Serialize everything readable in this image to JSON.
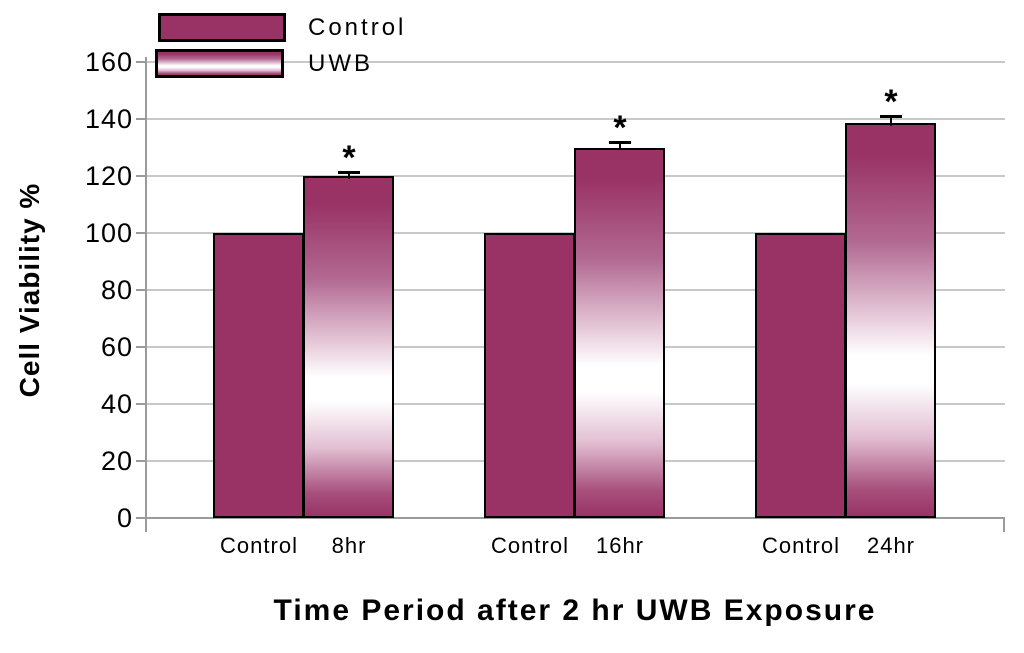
{
  "chart_data": {
    "type": "bar",
    "title": "",
    "xlabel": "Time Period after 2 hr UWB Exposure",
    "ylabel": "Cell Viability %",
    "ylim": [
      0,
      160
    ],
    "yticks": [
      0,
      20,
      40,
      60,
      80,
      100,
      120,
      140,
      160
    ],
    "grid": "horizontal gridlines every 20 units",
    "categories": [
      "8hr",
      "16hr",
      "24hr"
    ],
    "x_tick_labels": [
      [
        "Control",
        "8hr"
      ],
      [
        "Control",
        "16hr"
      ],
      [
        "Control",
        "24hr"
      ]
    ],
    "series": [
      {
        "name": "Control",
        "fill": "solid",
        "values": [
          100,
          100,
          100
        ]
      },
      {
        "name": "UWB",
        "fill": "vertical-gradient",
        "values": [
          120,
          130,
          138.5
        ],
        "errors_upper": [
          1.5,
          2,
          2.5
        ],
        "annotations": [
          "*",
          "*",
          "*"
        ]
      }
    ],
    "legend": {
      "position": "top-left overlapping plot",
      "entries": [
        "Control",
        "UWB"
      ]
    }
  },
  "colors": {
    "bar_fill": "#993366",
    "bar_border": "#000000",
    "gridline": "#c8c8c8",
    "axis_line": "#9b9b9b",
    "text": "#000000",
    "background": "#ffffff"
  }
}
